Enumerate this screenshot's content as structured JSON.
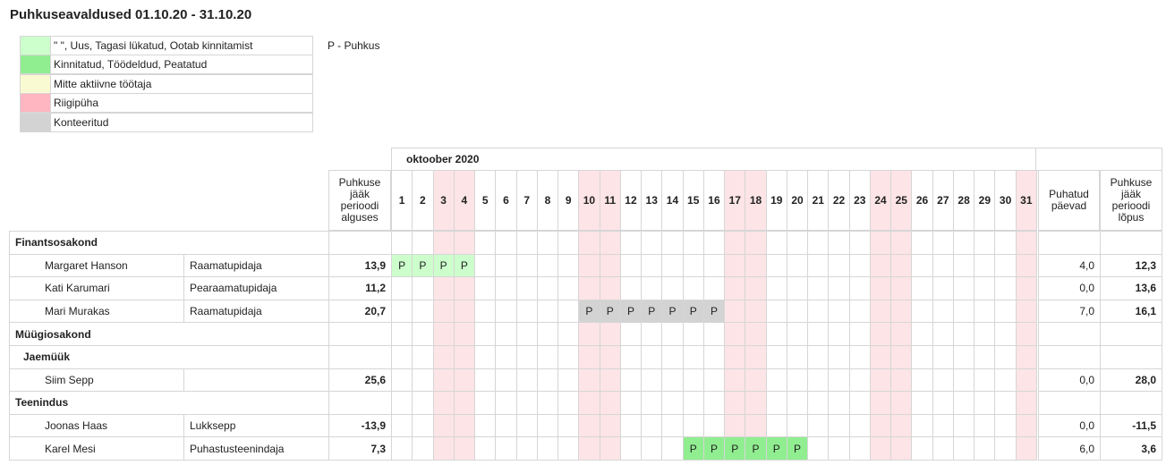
{
  "title": "Puhkuseavaldused 01.10.20 - 31.10.20",
  "legend": {
    "items": [
      {
        "label": "\" \", Uus, Tagasi lükatud, Ootab kinnitamist",
        "color": "#ccffcc"
      },
      {
        "label": "Kinnitatud, Töödeldud, Peatatud",
        "color": "#90ee90"
      },
      {
        "label": "Mitte aktiivne töötaja",
        "color": "#fafad2"
      },
      {
        "label": "Riigipüha",
        "color": "#ffb6c1"
      },
      {
        "label": "Konteeritud",
        "color": "#d3d3d3"
      }
    ],
    "note": "P - Puhkus"
  },
  "table": {
    "month": "oktoober 2020",
    "start_header": "Puhkuse jääk perioodi alguses",
    "used_header": "Puhatud päevad",
    "end_header": "Puhkuse jääk perioodi lõpus",
    "days": [
      1,
      2,
      3,
      4,
      5,
      6,
      7,
      8,
      9,
      10,
      11,
      12,
      13,
      14,
      15,
      16,
      17,
      18,
      19,
      20,
      21,
      22,
      23,
      24,
      25,
      26,
      27,
      28,
      29,
      30,
      31
    ],
    "holidays": [
      3,
      4,
      10,
      11,
      17,
      18,
      24,
      25,
      31
    ],
    "holiday_color": "#fde4e6",
    "rows": [
      {
        "kind": "group",
        "name": "Finantsosakond"
      },
      {
        "kind": "employee",
        "name": "Margaret Hanson",
        "job": "Raamatupidaja",
        "start": "13,9",
        "used": "4,0",
        "end": "12,3",
        "leave_days": [
          1,
          2,
          3,
          4
        ],
        "mark": "P",
        "status": 0
      },
      {
        "kind": "employee",
        "name": "Kati Karumari",
        "job": "Pearaamatupidaja",
        "start": "11,2",
        "used": "0,0",
        "end": "13,6"
      },
      {
        "kind": "employee",
        "name": "Mari Murakas",
        "job": "Raamatupidaja",
        "start": "20,7",
        "used": "7,0",
        "end": "16,1",
        "leave_days": [
          10,
          11,
          12,
          13,
          14,
          15,
          16
        ],
        "mark": "P",
        "status": 4
      },
      {
        "kind": "group",
        "name": "Müügiosakond"
      },
      {
        "kind": "subgroup",
        "name": "Jaemüük"
      },
      {
        "kind": "employee",
        "name": "Siim Sepp",
        "start": "25,6",
        "used": "0,0",
        "end": "28,0"
      },
      {
        "kind": "group",
        "name": "Teenindus"
      },
      {
        "kind": "employee",
        "name": "Joonas Haas",
        "job": "Lukksepp",
        "start": "-13,9",
        "used": "0,0",
        "end": "-11,5"
      },
      {
        "kind": "employee",
        "name": "Karel Mesi",
        "job": "Puhastusteenindaja",
        "start": "7,3",
        "used": "6,0",
        "end": "3,6",
        "leave_days": [
          15,
          16,
          17,
          18,
          19,
          20
        ],
        "mark": "P",
        "status": 1
      }
    ]
  }
}
